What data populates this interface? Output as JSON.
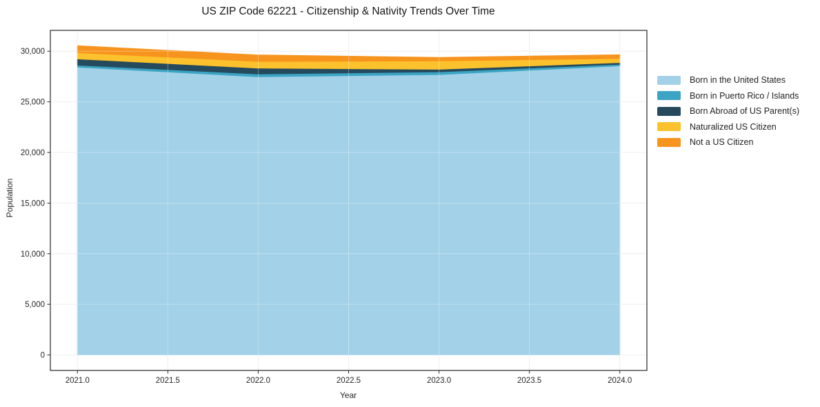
{
  "title": "US ZIP Code 62221 - Citizenship & Nativity Trends Over Time",
  "chart_data": {
    "type": "area",
    "stacked": true,
    "title": "US ZIP Code 62221 - Citizenship & Nativity Trends Over Time",
    "xlabel": "Year",
    "ylabel": "Population",
    "x": [
      2021,
      2022,
      2023,
      2024
    ],
    "series": [
      {
        "name": "Born in the United States",
        "color": "#a2d1e8",
        "values": [
          28420,
          27480,
          27690,
          28555
        ]
      },
      {
        "name": "Born in Puerto Rico / Islands",
        "color": "#3ca4c4",
        "values": [
          205,
          275,
          275,
          155
        ]
      },
      {
        "name": "Born Abroad of US Parent(s)",
        "color": "#254a5d",
        "values": [
          615,
          575,
          255,
          165
        ]
      },
      {
        "name": "Naturalized US Citizen",
        "color": "#fcc22d",
        "values": [
          615,
          655,
          820,
          410
        ]
      },
      {
        "name": "Not a US Citizen",
        "color": "#f7941e",
        "values": [
          685,
          645,
          340,
          365
        ]
      }
    ],
    "stack_totals": [
      30540,
      29630,
      29380,
      29650
    ],
    "x_ticks": [
      2021.0,
      2021.5,
      2022.0,
      2022.5,
      2023.0,
      2023.5,
      2024.0
    ],
    "x_tick_labels": [
      "2021.0",
      "2021.5",
      "2022.0",
      "2022.5",
      "2023.0",
      "2023.5",
      "2024.0"
    ],
    "y_ticks": [
      0,
      5000,
      10000,
      15000,
      20000,
      25000,
      30000
    ],
    "y_tick_labels": [
      "0",
      "5,000",
      "10,000",
      "15,000",
      "20,000",
      "25,000",
      "30,000"
    ],
    "xlim": [
      2020.85,
      2024.15
    ],
    "ylim": [
      -1530,
      32060
    ],
    "grid": true,
    "legend_position": "right-outside",
    "colors": {
      "grid": "#e7e7e7",
      "grid_overlay": "rgba(255,255,255,0.32)",
      "spine": "#262626",
      "tick_text": "#262626",
      "title_text": "#151515"
    }
  }
}
